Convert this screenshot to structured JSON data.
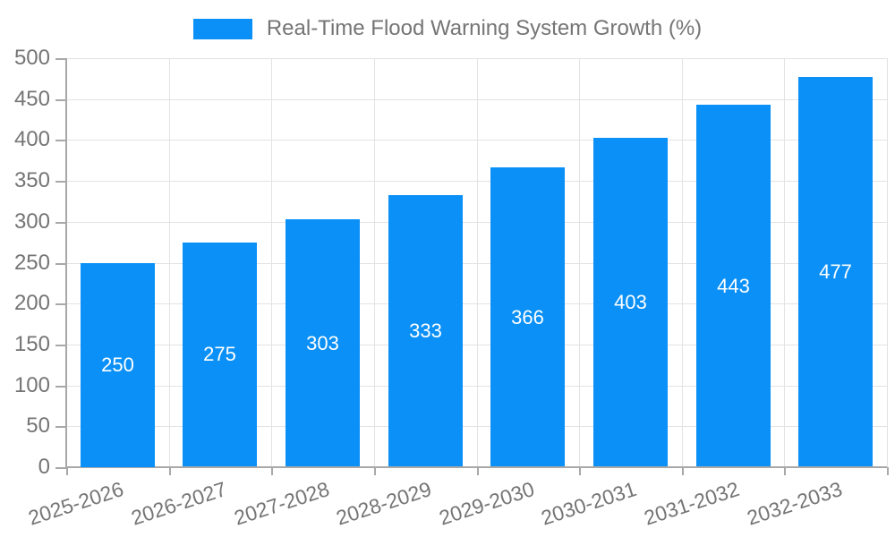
{
  "legend": {
    "label": "Real-Time Flood Warning System Growth (%)"
  },
  "chart_data": {
    "type": "bar",
    "title": "Real-Time Flood Warning System Growth (%)",
    "categories": [
      "2025-2026",
      "2026-2027",
      "2027-2028",
      "2028-2029",
      "2029-2030",
      "2030-2031",
      "2031-2032",
      "2032-2033"
    ],
    "values": [
      250,
      275,
      303,
      333,
      366,
      403,
      443,
      477
    ],
    "xlabel": "",
    "ylabel": "",
    "ylim": [
      0,
      500
    ],
    "ytick_step": 50,
    "grid": true,
    "legend_position": "top",
    "x_tick_rotation_deg": -18,
    "colors": {
      "bar": "#0a90f6",
      "bar_value_text": "#ffffff",
      "axis_text": "#757575",
      "grid_line": "#e3e3e3",
      "axis_line": "#a8a8a8"
    }
  }
}
